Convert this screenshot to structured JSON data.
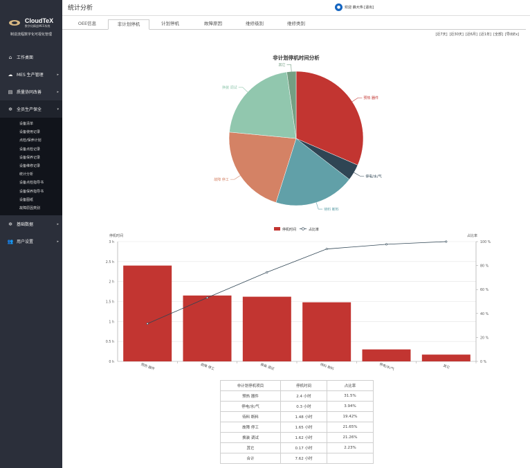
{
  "sidebar": {
    "brand": "CloudTeX",
    "brand_sub": "数字化精益MES系统",
    "tagline": "制造流程数字化可视化管理",
    "items": [
      {
        "label": "工作桌面",
        "icon": "home-icon",
        "has_children": false
      },
      {
        "label": "MES 生产管理",
        "icon": "cloud-icon",
        "has_children": true
      },
      {
        "label": "质量协同改善",
        "icon": "server-icon",
        "has_children": true
      },
      {
        "label": "全员生产保全",
        "icon": "gear-icon",
        "has_children": true
      }
    ],
    "submenu": [
      "设备清单",
      "设备使用记录",
      "点检/保养计划",
      "设备点检记录",
      "设备保养记录",
      "设备维修记录",
      "统计分析",
      "设备点检指导书",
      "设备保养指导书",
      "设备图纸",
      "故障原因类别"
    ],
    "items_after": [
      {
        "label": "基础数据",
        "icon": "gear-icon",
        "has_children": true
      },
      {
        "label": "用户设置",
        "icon": "users-icon",
        "has_children": true
      }
    ]
  },
  "header": {
    "title": "统计分析",
    "user": "欢迎 薛大伟 [退出]"
  },
  "tabs": [
    "OEE信息",
    "非计划停机",
    "计划停机",
    "故障原因",
    "维修级别",
    "维修类别"
  ],
  "active_tab": 1,
  "ranges": [
    "[近7天]",
    "[近30天]",
    "[近6月]",
    "[近1年]",
    "[全部]",
    "[导出Ex]"
  ],
  "pie_chart": {
    "title": "非计划停机时间分析",
    "slices": [
      {
        "label": "预热 器件",
        "value": 2.4,
        "color": "#c23531"
      },
      {
        "label": "停电/水/气",
        "value": 0.3,
        "color": "#2f4554"
      },
      {
        "label": "待料 断料",
        "value": 1.48,
        "color": "#61a0a8"
      },
      {
        "label": "故障 停工",
        "value": 1.65,
        "color": "#d48265"
      },
      {
        "label": "换装 调试",
        "value": 1.62,
        "color": "#91c7ae"
      },
      {
        "label": "其它",
        "value": 0.17,
        "color": "#749f83"
      }
    ]
  },
  "chart_data": {
    "type": "bar",
    "title": "",
    "legend": [
      "停机时间",
      "占比率"
    ],
    "legend_position": "top-center",
    "ylabel": "停机时间",
    "y2label": "占比率",
    "categories": [
      "预热 器件",
      "故障 停工",
      "换装 调试",
      "待料 断料",
      "停电/水/气",
      "其它"
    ],
    "series": [
      {
        "name": "停机时间",
        "type": "bar",
        "values": [
          2.4,
          1.65,
          1.62,
          1.48,
          0.3,
          0.17
        ],
        "color": "#c23531"
      },
      {
        "name": "占比率",
        "type": "line",
        "axis": "right",
        "values": [
          31.5,
          53.15,
          74.41,
          93.83,
          97.77,
          100.0
        ],
        "color": "#2f4554"
      }
    ],
    "ylim": [
      0,
      3
    ],
    "y_ticks": [
      "0 h",
      "0.5 h",
      "1 h",
      "1.5 h",
      "2 h",
      "2.5 h",
      "3 h"
    ],
    "y2lim": [
      0,
      100
    ],
    "y2_ticks": [
      "0 %",
      "20 %",
      "40 %",
      "60 %",
      "80 %",
      "100 %"
    ],
    "grid": true
  },
  "table": {
    "headers": [
      "非计划停机项目",
      "停机时间",
      "占比率"
    ],
    "rows": [
      [
        "预热 器件",
        "2.4 小时",
        "31.5%"
      ],
      [
        "停电/水/气",
        "0.3 小时",
        "3.94%"
      ],
      [
        "待料 断料",
        "1.48 小时",
        "19.42%"
      ],
      [
        "故障 停工",
        "1.65 小时",
        "21.65%"
      ],
      [
        "换装 调试",
        "1.62 小时",
        "21.26%"
      ],
      [
        "其它",
        "0.17 小时",
        "2.23%"
      ],
      [
        "合计",
        "7.62 小时",
        ""
      ]
    ]
  }
}
